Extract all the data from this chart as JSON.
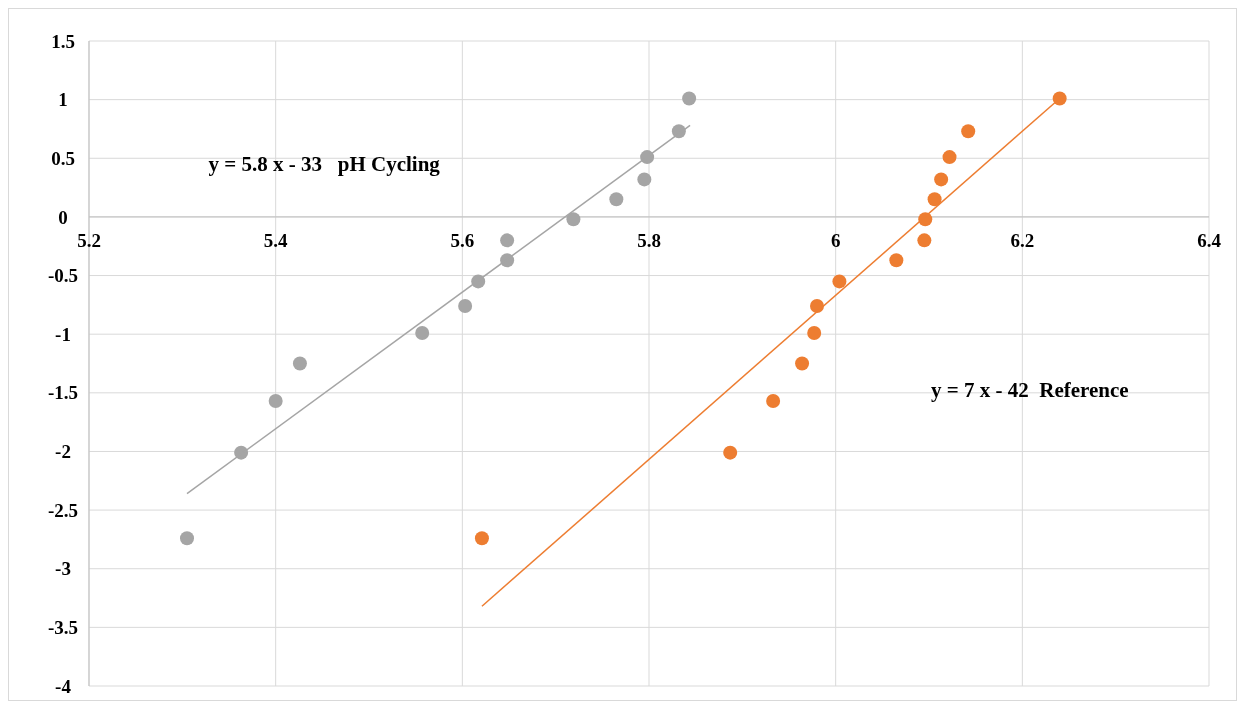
{
  "chart_data": {
    "type": "scatter",
    "marker": "circle",
    "grid": true,
    "xlim": [
      5.2,
      6.4
    ],
    "xticks": [
      5.2,
      5.4,
      5.6,
      5.8,
      6,
      6.2,
      6.4
    ],
    "ylim": [
      -4,
      1.5
    ],
    "yticks": [
      -4,
      -3.5,
      -3,
      -2.5,
      -2,
      -1.5,
      -1,
      -0.5,
      0,
      0.5,
      1,
      1.5
    ],
    "series": [
      {
        "color": "#a5a5a5",
        "x": [
          5.305,
          5.363,
          5.4,
          5.426,
          5.557,
          5.603,
          5.617,
          5.648,
          5.648,
          5.719,
          5.765,
          5.795,
          5.798,
          5.832,
          5.843
        ],
        "values": [
          -2.74,
          -2.01,
          -1.57,
          -1.25,
          -0.99,
          -0.76,
          -0.55,
          -0.37,
          -0.2,
          -0.02,
          0.15,
          0.32,
          0.51,
          0.73,
          1.01
        ]
      },
      {
        "color": "#ed7d31",
        "x": [
          5.621,
          5.887,
          5.933,
          5.964,
          5.977,
          5.98,
          6.004,
          6.065,
          6.095,
          6.096,
          6.106,
          6.113,
          6.122,
          6.142,
          6.24
        ],
        "values": [
          -2.74,
          -2.01,
          -1.57,
          -1.25,
          -0.99,
          -0.76,
          -0.55,
          -0.37,
          -0.2,
          -0.02,
          0.15,
          0.32,
          0.51,
          0.73,
          1.01
        ]
      },
      {
        "type": "line",
        "marker": "none",
        "color": "#a5a5a5",
        "x": [
          5.305,
          5.844
        ],
        "values": [
          -2.36,
          0.78
        ]
      },
      {
        "type": "line",
        "marker": "none",
        "color": "#ed7d31",
        "x": [
          5.621,
          6.24
        ],
        "values": [
          -3.32,
          1.01
        ]
      }
    ],
    "annotations": [
      "y = 5.8 x - 33   pH Cycling",
      "y = 7 x - 42  Reference"
    ]
  }
}
